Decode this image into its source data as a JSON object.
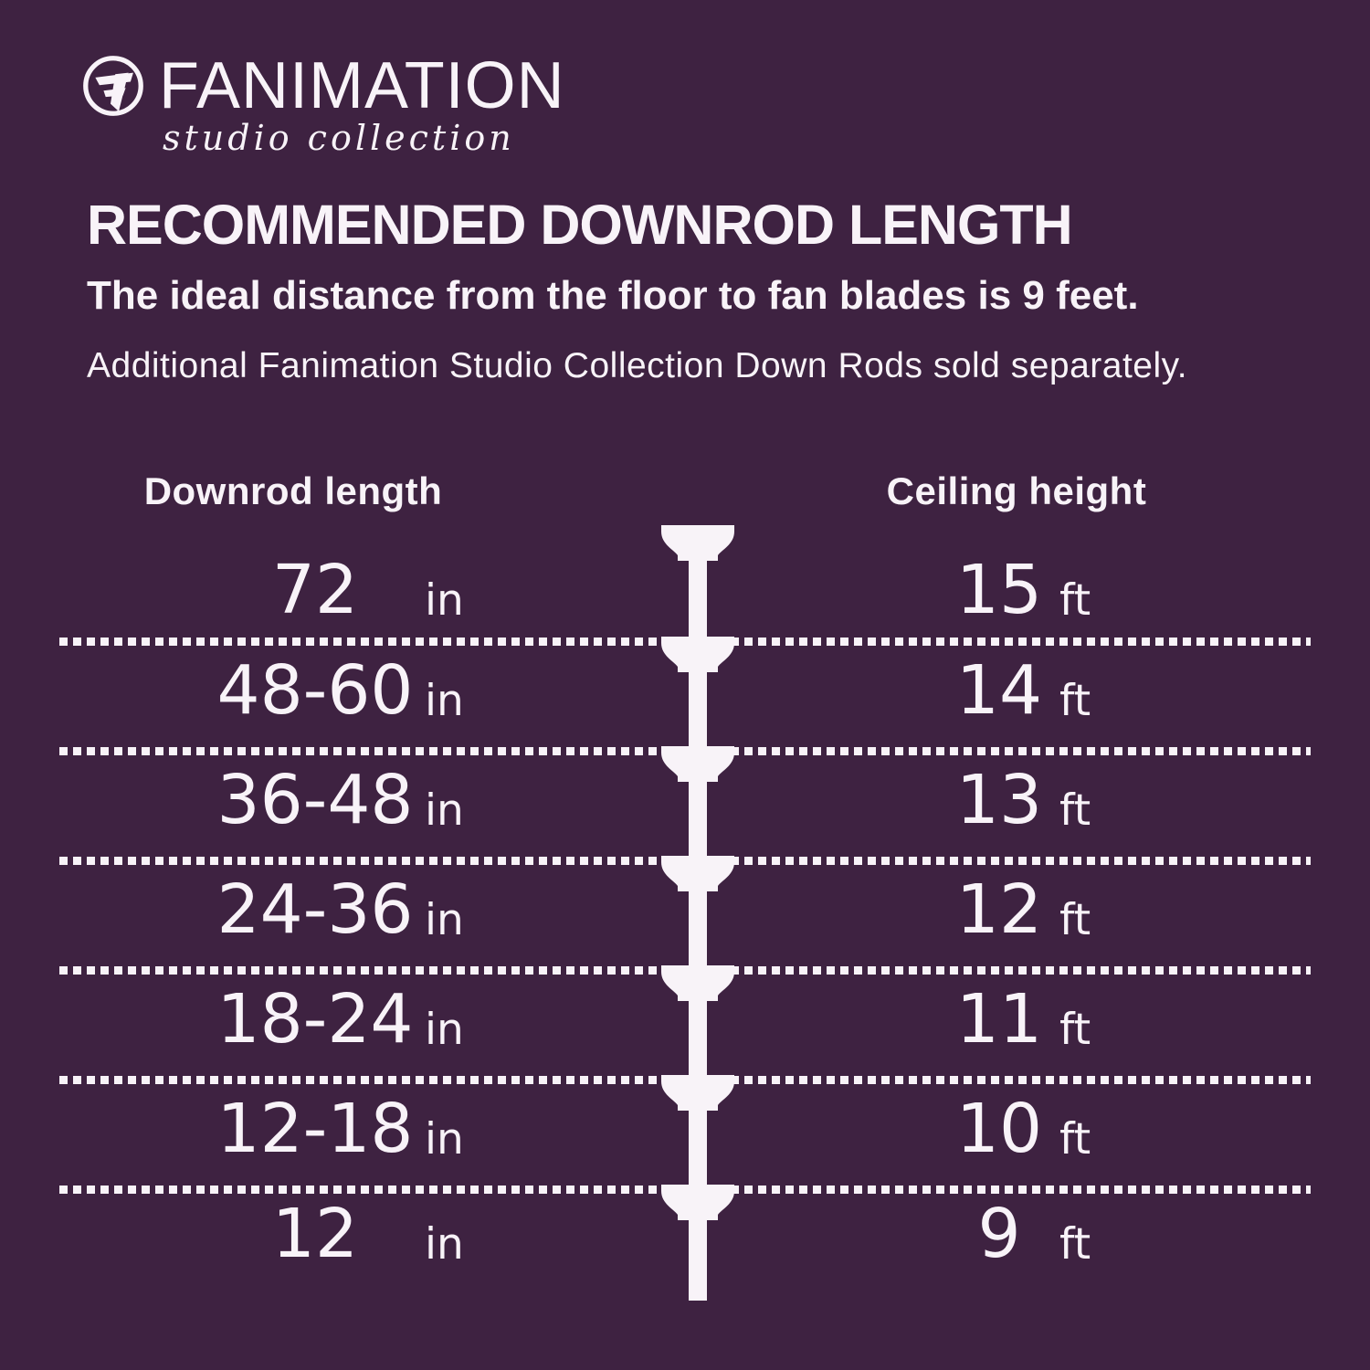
{
  "brand": {
    "name": "FANIMATION",
    "collection": "studio collection",
    "logo_icon": "fanimation-f-circle-icon"
  },
  "heading": {
    "title": "RECOMMENDED DOWNROD LENGTH",
    "subtitle": "The ideal distance from the floor to fan blades is 9 feet.",
    "note": "Additional Fanimation Studio Collection Down Rods sold separately."
  },
  "table": {
    "left_header": "Downrod length",
    "right_header": "Ceiling height",
    "rows": [
      {
        "downrod": "72",
        "downrod_unit": "in",
        "ceiling": "15",
        "ceiling_unit": "ft"
      },
      {
        "downrod": "48-60",
        "downrod_unit": "in",
        "ceiling": "14",
        "ceiling_unit": "ft"
      },
      {
        "downrod": "36-48",
        "downrod_unit": "in",
        "ceiling": "13",
        "ceiling_unit": "ft"
      },
      {
        "downrod": "24-36",
        "downrod_unit": "in",
        "ceiling": "12",
        "ceiling_unit": "ft"
      },
      {
        "downrod": "18-24",
        "downrod_unit": "in",
        "ceiling": "11",
        "ceiling_unit": "ft"
      },
      {
        "downrod": "12-18",
        "downrod_unit": "in",
        "ceiling": "10",
        "ceiling_unit": "ft"
      },
      {
        "downrod": "12",
        "downrod_unit": "in",
        "ceiling": "9",
        "ceiling_unit": "ft"
      }
    ]
  },
  "colors": {
    "bg": "#3e2241",
    "ink": "#f8f3f8"
  }
}
